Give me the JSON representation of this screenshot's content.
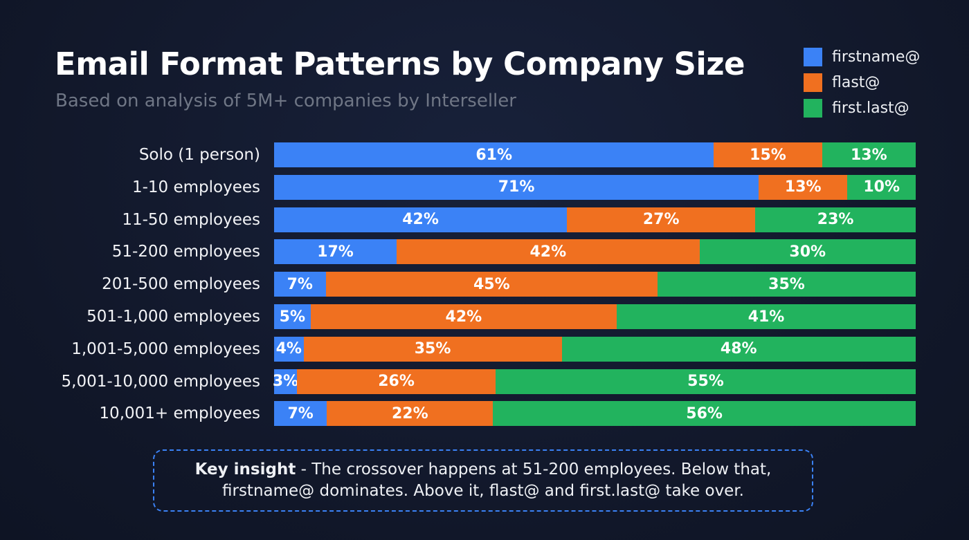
{
  "chart_data": {
    "type": "bar",
    "orientation": "horizontal",
    "stacked": true,
    "title": "Email Format Patterns by Company Size",
    "subtitle": "Based on analysis of 5M+ companies by Interseller",
    "legend_position": "top-right",
    "categories": [
      "Solo (1 person)",
      "1-10 employees",
      "11-50 employees",
      "51-200 employees",
      "201-500 employees",
      "501-1,000 employees",
      "1,001-5,000 employees",
      "5,001-10,000 employees",
      "10,001+ employees"
    ],
    "series": [
      {
        "name": "firstname@",
        "color": "#3b82f6",
        "values": [
          61,
          71,
          42,
          17,
          7,
          5,
          4,
          3,
          7
        ]
      },
      {
        "name": "flast@",
        "color": "#f07020",
        "values": [
          15,
          13,
          27,
          42,
          45,
          42,
          35,
          26,
          22
        ]
      },
      {
        "name": "first.last@",
        "color": "#22b35e",
        "values": [
          13,
          10,
          23,
          30,
          35,
          41,
          48,
          55,
          56
        ]
      }
    ],
    "value_suffix": "%"
  },
  "insight": {
    "lead": "Key insight",
    "text": " - The crossover happens at 51-200 employees. Below that, firstname@ dominates. Above it, flast@ and first.last@ take over."
  }
}
